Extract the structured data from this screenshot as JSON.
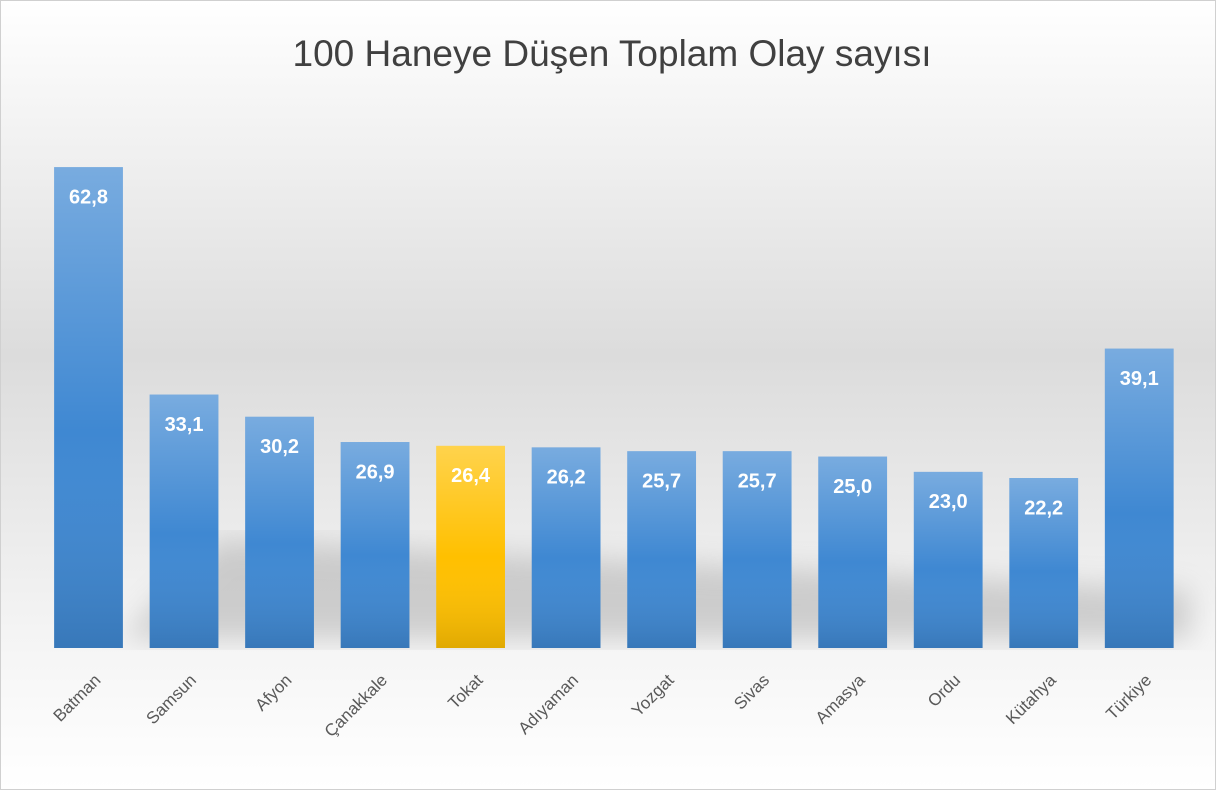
{
  "chart_data": {
    "type": "bar",
    "title": "100 Haneye Düşen Toplam Olay sayısı",
    "categories": [
      "Batman",
      "Samsun",
      "Afyon",
      "Çanakkale",
      "Tokat",
      "Adıyaman",
      "Yozgat",
      "Sivas",
      "Amasya",
      "Ordu",
      "Kütahya",
      "Türkiye"
    ],
    "values": [
      62.8,
      33.1,
      30.2,
      26.9,
      26.4,
      26.2,
      25.7,
      25.7,
      25.0,
      23.0,
      22.2,
      39.1
    ],
    "value_labels": [
      "62,8",
      "33,1",
      "30,2",
      "26,9",
      "26,4",
      "26,2",
      "25,7",
      "25,7",
      "25,0",
      "23,0",
      "22,2",
      "39,1"
    ],
    "colors": [
      "#3f88d2",
      "#3f88d2",
      "#3f88d2",
      "#3f88d2",
      "#ffc000",
      "#3f88d2",
      "#3f88d2",
      "#3f88d2",
      "#3f88d2",
      "#3f88d2",
      "#3f88d2",
      "#3f88d2"
    ],
    "ylim": [
      0,
      70
    ]
  }
}
